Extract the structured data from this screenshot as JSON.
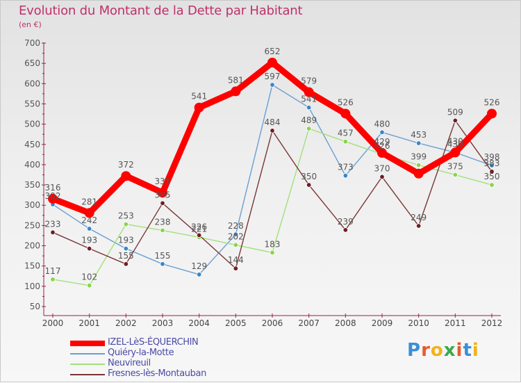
{
  "header": {
    "title": "Evolution du Montant de la Dette par Habitant",
    "subtitle": "(en €)"
  },
  "logo": {
    "letters": [
      "P",
      "r",
      "o",
      "x",
      "i",
      "t",
      "i"
    ],
    "colors": [
      "#3a8fd8",
      "#e8592c",
      "#f2b21a",
      "#3aa84a",
      "#e8592c",
      "#3a8fd8",
      "#f2b21a"
    ]
  },
  "chart_data": {
    "type": "line",
    "title": "Evolution du Montant de la Dette par Habitant",
    "subtitle": "(en €)",
    "xlabel": "",
    "ylabel": "",
    "x": [
      "2000",
      "2001",
      "2002",
      "2003",
      "2004",
      "2005",
      "2006",
      "2007",
      "2008",
      "2009",
      "2010",
      "2011",
      "2012"
    ],
    "ylim": [
      50,
      700
    ],
    "yticks": [
      50,
      100,
      150,
      200,
      250,
      300,
      350,
      400,
      450,
      500,
      550,
      600,
      650,
      700
    ],
    "grid": false,
    "legend_position": "bottom-left",
    "series": [
      {
        "name": "IZEL-LèS-ÉQUERCHIN",
        "color": "#ff0000",
        "point_color": "#ff0000",
        "emphasis": true,
        "values": [
          316,
          281,
          372,
          331,
          541,
          581,
          652,
          579,
          526,
          429,
          378,
          430,
          526
        ],
        "labels": [
          "316",
          "281",
          "372",
          "331",
          "541",
          "581",
          "652",
          "579",
          "526",
          "429",
          "",
          "430",
          "526"
        ]
      },
      {
        "name": "Quiéry-la-Motte",
        "color": "#6a9ecf",
        "point_color": "#3a86c8",
        "emphasis": false,
        "values": [
          302,
          242,
          193,
          155,
          129,
          228,
          597,
          541,
          373,
          480,
          453,
          430,
          398
        ],
        "labels": [
          "302",
          "242",
          "193",
          "155",
          "129",
          "228",
          "597",
          "541",
          "373",
          "480",
          "453",
          "430",
          "398"
        ]
      },
      {
        "name": "Neuvireuil",
        "color": "#a3e07a",
        "point_color": "#8ad44a",
        "emphasis": false,
        "values": [
          117,
          102,
          253,
          238,
          221,
          202,
          183,
          489,
          457,
          426,
          399,
          375,
          350
        ],
        "labels": [
          "117",
          "102",
          "253",
          "238",
          "221",
          "202",
          "183",
          "489",
          "457",
          "426",
          "399",
          "375",
          "350"
        ]
      },
      {
        "name": "Fresnes-lès-Montauban",
        "color": "#7a3535",
        "point_color": "#6e1e26",
        "emphasis": false,
        "values": [
          233,
          193,
          155,
          305,
          226,
          144,
          484,
          350,
          239,
          370,
          249,
          509,
          383
        ],
        "labels": [
          "233",
          "193",
          "155",
          "305",
          "226",
          "144",
          "484",
          "350",
          "239",
          "370",
          "249",
          "509",
          "383"
        ]
      }
    ]
  }
}
